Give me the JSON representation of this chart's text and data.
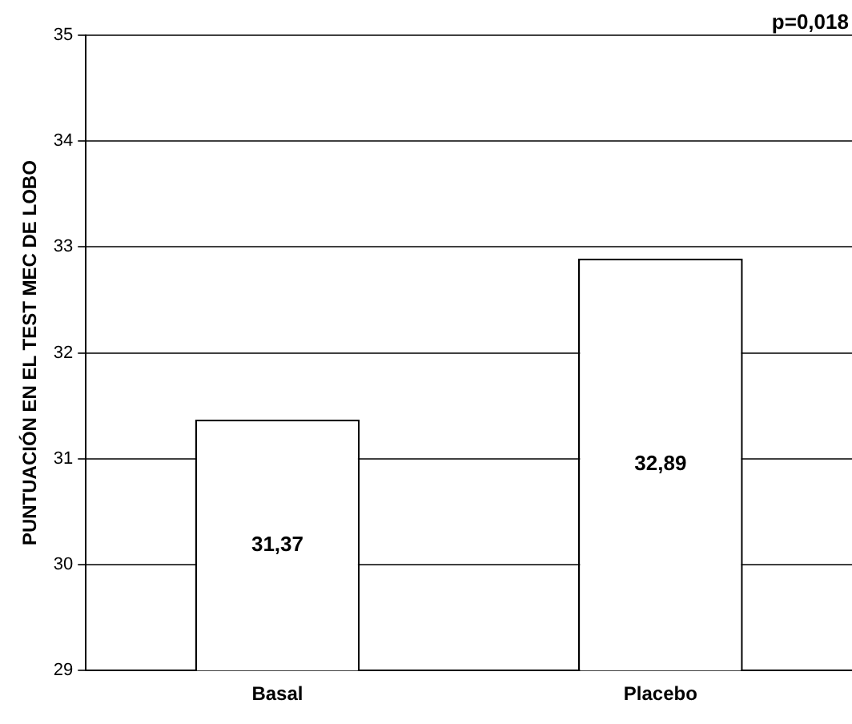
{
  "chart_data": {
    "type": "bar",
    "ylabel": "PUNTUACIÓN EN EL TEST MEC DE LOBO",
    "categories": [
      "Basal",
      "Placebo"
    ],
    "values": [
      31.37,
      32.89
    ],
    "value_labels": [
      "31,37",
      "32,89"
    ],
    "color": "#ffffff",
    "ylim": [
      29,
      35
    ],
    "yticks": [
      29,
      30,
      31,
      32,
      33,
      34,
      35
    ],
    "grid": "y",
    "legend": false,
    "annotations": [
      "p=0,018"
    ]
  }
}
